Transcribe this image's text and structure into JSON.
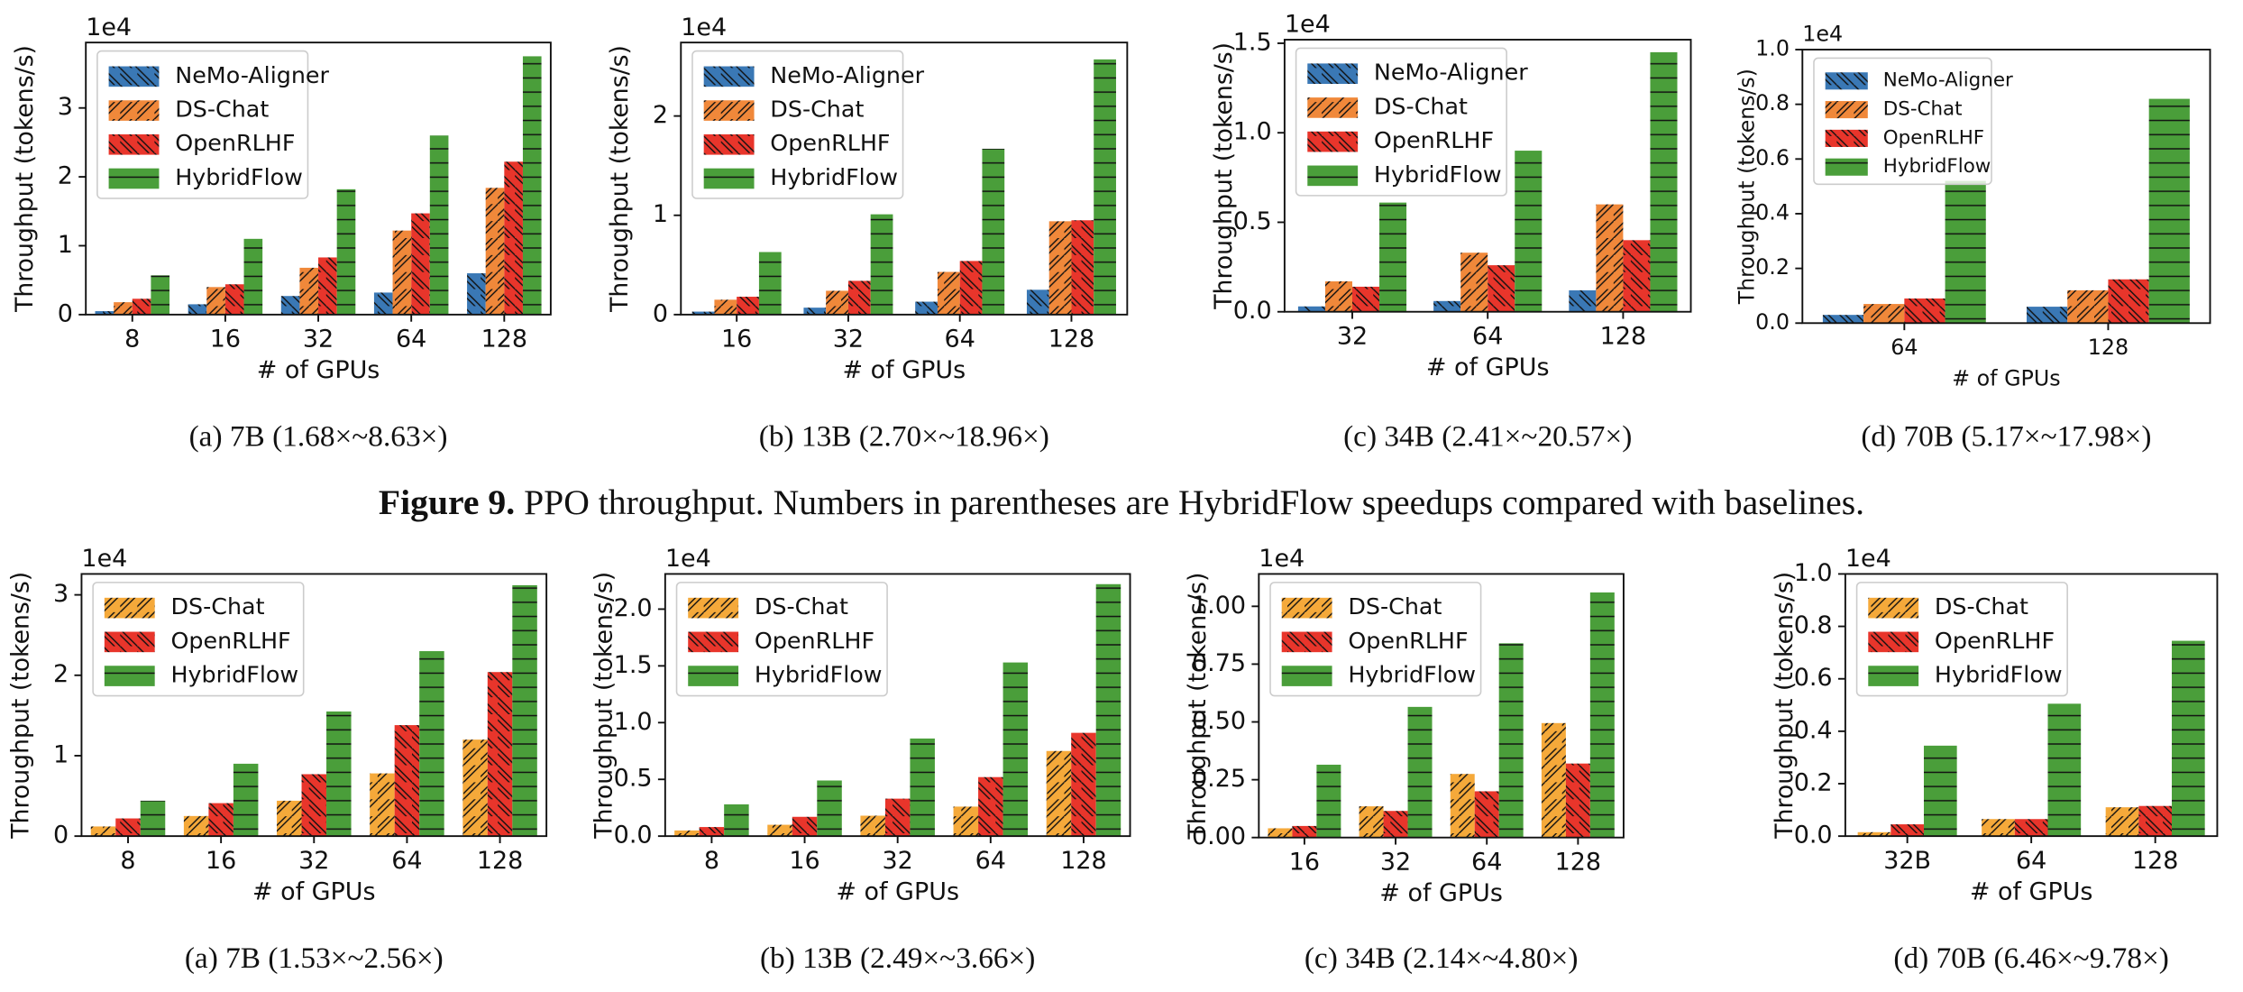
{
  "caption": {
    "label": "Figure 9.",
    "text": "PPO throughput. Numbers in parentheses are HybridFlow speedups compared with baselines."
  },
  "chart_data": [
    {
      "type": "bar",
      "subcaption": "(a)  7B (1.68×~8.63×)",
      "xlabel": "# of GPUs",
      "ylabel": "Throughput (tokens/s)",
      "offset_label": "1e4",
      "legend": "upper left",
      "categories": [
        "8",
        "16",
        "32",
        "64",
        "128"
      ],
      "ylim": [
        0,
        3.95
      ],
      "yticks": [
        0,
        1,
        2,
        3
      ],
      "series": [
        {
          "name": "NeMo-Aligner",
          "color": "#3a78b5",
          "hatch": "\\",
          "values": [
            0.05,
            0.15,
            0.27,
            0.32,
            0.6
          ]
        },
        {
          "name": "DS-Chat",
          "color": "#f0883a",
          "hatch": "/",
          "values": [
            0.18,
            0.4,
            0.68,
            1.22,
            1.84
          ]
        },
        {
          "name": "OpenRLHF",
          "color": "#e8352b",
          "hatch": "\\",
          "values": [
            0.23,
            0.44,
            0.83,
            1.47,
            2.22
          ]
        },
        {
          "name": "HybridFlow",
          "color": "#4a9e3a",
          "hatch": "-",
          "values": [
            0.57,
            1.1,
            1.82,
            2.6,
            3.75
          ]
        }
      ]
    },
    {
      "type": "bar",
      "subcaption": "(b)  13B (2.70×~18.96×)",
      "xlabel": "# of GPUs",
      "ylabel": "Throughput (tokens/s)",
      "offset_label": "1e4",
      "legend": "upper left",
      "categories": [
        "16",
        "32",
        "64",
        "128"
      ],
      "ylim": [
        0,
        2.74
      ],
      "yticks": [
        0,
        1,
        2
      ],
      "series": [
        {
          "name": "NeMo-Aligner",
          "color": "#3a78b5",
          "hatch": "\\",
          "values": [
            0.03,
            0.07,
            0.13,
            0.25
          ]
        },
        {
          "name": "DS-Chat",
          "color": "#f0883a",
          "hatch": "/",
          "values": [
            0.15,
            0.24,
            0.43,
            0.94
          ]
        },
        {
          "name": "OpenRLHF",
          "color": "#e8352b",
          "hatch": "\\",
          "values": [
            0.18,
            0.34,
            0.54,
            0.95
          ]
        },
        {
          "name": "HybridFlow",
          "color": "#4a9e3a",
          "hatch": "-",
          "values": [
            0.63,
            1.01,
            1.67,
            2.57
          ]
        }
      ]
    },
    {
      "type": "bar",
      "subcaption": "(c)  34B (2.41×~20.57×)",
      "xlabel": "# of GPUs",
      "ylabel": "Throughput (tokens/s)",
      "offset_label": "1e4",
      "legend": "upper left",
      "categories": [
        "32",
        "64",
        "128"
      ],
      "ylim": [
        0,
        1.52
      ],
      "yticks": [
        {
          "value": 0,
          "label": "0.0"
        },
        0.5,
        {
          "value": 1,
          "label": "1.0"
        },
        1.5
      ],
      "series": [
        {
          "name": "NeMo-Aligner",
          "color": "#3a78b5",
          "hatch": "\\",
          "values": [
            0.03,
            0.06,
            0.12
          ]
        },
        {
          "name": "DS-Chat",
          "color": "#f0883a",
          "hatch": "/",
          "values": [
            0.17,
            0.33,
            0.6
          ]
        },
        {
          "name": "OpenRLHF",
          "color": "#e8352b",
          "hatch": "\\",
          "values": [
            0.14,
            0.26,
            0.4
          ]
        },
        {
          "name": "HybridFlow",
          "color": "#4a9e3a",
          "hatch": "-",
          "values": [
            0.61,
            0.9,
            1.45
          ]
        }
      ]
    },
    {
      "type": "bar",
      "subcaption": "(d)  70B (5.17×~17.98×)",
      "xlabel": "# of GPUs",
      "ylabel": "Throughput (tokens/s)",
      "offset_label": "1e4",
      "legend": "upper left",
      "categories": [
        "64",
        "128"
      ],
      "ylim": [
        0,
        1
      ],
      "yticks": [
        {
          "value": 0,
          "label": "0.0"
        },
        0.2,
        0.4,
        0.6,
        0.8,
        {
          "value": 1,
          "label": "1.0"
        }
      ],
      "series": [
        {
          "name": "NeMo-Aligner",
          "color": "#3a78b5",
          "hatch": "\\",
          "values": [
            0.03,
            0.06
          ]
        },
        {
          "name": "DS-Chat",
          "color": "#f0883a",
          "hatch": "/",
          "values": [
            0.07,
            0.12
          ]
        },
        {
          "name": "OpenRLHF",
          "color": "#e8352b",
          "hatch": "\\",
          "values": [
            0.09,
            0.16
          ]
        },
        {
          "name": "HybridFlow",
          "color": "#4a9e3a",
          "hatch": "-",
          "values": [
            0.52,
            0.82
          ]
        }
      ]
    },
    {
      "type": "bar",
      "subcaption": "(a)  7B (1.53×~2.56×)",
      "xlabel": "# of GPUs",
      "ylabel": "Throughput (tokens/s)",
      "offset_label": "1e4",
      "legend": "upper left",
      "categories": [
        "8",
        "16",
        "32",
        "64",
        "128"
      ],
      "ylim": [
        0,
        3.26
      ],
      "yticks": [
        0,
        1,
        2,
        3
      ],
      "series": [
        {
          "name": "DS-Chat",
          "color": "#f5a93a",
          "hatch": "/",
          "values": [
            0.12,
            0.25,
            0.44,
            0.78,
            1.2
          ]
        },
        {
          "name": "OpenRLHF",
          "color": "#e8352b",
          "hatch": "\\",
          "values": [
            0.22,
            0.41,
            0.77,
            1.38,
            2.04
          ]
        },
        {
          "name": "HybridFlow",
          "color": "#4a9e3a",
          "hatch": "-",
          "values": [
            0.44,
            0.9,
            1.55,
            2.3,
            3.12
          ]
        }
      ]
    },
    {
      "type": "bar",
      "subcaption": "(b)  13B (2.49×~3.66×)",
      "xlabel": "# of GPUs",
      "ylabel": "Throughput (tokens/s)",
      "offset_label": "1e4",
      "legend": "upper left",
      "categories": [
        "8",
        "16",
        "32",
        "64",
        "128"
      ],
      "ylim": [
        0,
        2.31
      ],
      "yticks": [
        {
          "value": 0,
          "label": "0.0"
        },
        0.5,
        {
          "value": 1,
          "label": "1.0"
        },
        1.5,
        {
          "value": 2,
          "label": "2.0"
        }
      ],
      "series": [
        {
          "name": "DS-Chat",
          "color": "#f5a93a",
          "hatch": "/",
          "values": [
            0.05,
            0.1,
            0.18,
            0.26,
            0.75
          ]
        },
        {
          "name": "OpenRLHF",
          "color": "#e8352b",
          "hatch": "\\",
          "values": [
            0.08,
            0.17,
            0.33,
            0.52,
            0.91
          ]
        },
        {
          "name": "HybridFlow",
          "color": "#4a9e3a",
          "hatch": "-",
          "values": [
            0.28,
            0.49,
            0.86,
            1.53,
            2.22
          ]
        }
      ]
    },
    {
      "type": "bar",
      "subcaption": "(c)  34B (2.14×~4.80×)",
      "xlabel": "# of GPUs",
      "ylabel": "Throughput (tokens/s)",
      "offset_label": "1e4",
      "legend": "upper left",
      "categories": [
        "16",
        "32",
        "64",
        "128"
      ],
      "ylim": [
        0,
        1.14
      ],
      "yticks": [
        {
          "value": 0,
          "label": "0.00"
        },
        0.25,
        {
          "value": 0.5,
          "label": "0.50"
        },
        0.75,
        {
          "value": 1,
          "label": "1.00"
        }
      ],
      "series": [
        {
          "name": "DS-Chat",
          "color": "#f5a93a",
          "hatch": "/",
          "values": [
            0.04,
            0.135,
            0.275,
            0.495
          ]
        },
        {
          "name": "OpenRLHF",
          "color": "#e8352b",
          "hatch": "\\",
          "values": [
            0.05,
            0.115,
            0.2,
            0.32
          ]
        },
        {
          "name": "HybridFlow",
          "color": "#4a9e3a",
          "hatch": "-",
          "values": [
            0.315,
            0.565,
            0.84,
            1.06
          ]
        }
      ]
    },
    {
      "type": "bar",
      "subcaption": "(d)  70B (6.46×~9.78×)",
      "xlabel": "# of GPUs",
      "ylabel": "Throughput (tokens/s)",
      "offset_label": "1e4",
      "legend": "upper left",
      "categories": [
        "32B",
        "64",
        "128"
      ],
      "ylim": [
        0,
        1
      ],
      "yticks": [
        {
          "value": 0,
          "label": "0.0"
        },
        0.2,
        0.4,
        0.6,
        0.8,
        {
          "value": 1,
          "label": "1.0"
        }
      ],
      "series": [
        {
          "name": "DS-Chat",
          "color": "#f5a93a",
          "hatch": "/",
          "values": [
            0.015,
            0.065,
            0.11
          ]
        },
        {
          "name": "OpenRLHF",
          "color": "#e8352b",
          "hatch": "\\",
          "values": [
            0.045,
            0.065,
            0.115
          ]
        },
        {
          "name": "HybridFlow",
          "color": "#4a9e3a",
          "hatch": "-",
          "values": [
            0.345,
            0.505,
            0.745
          ]
        }
      ]
    }
  ]
}
